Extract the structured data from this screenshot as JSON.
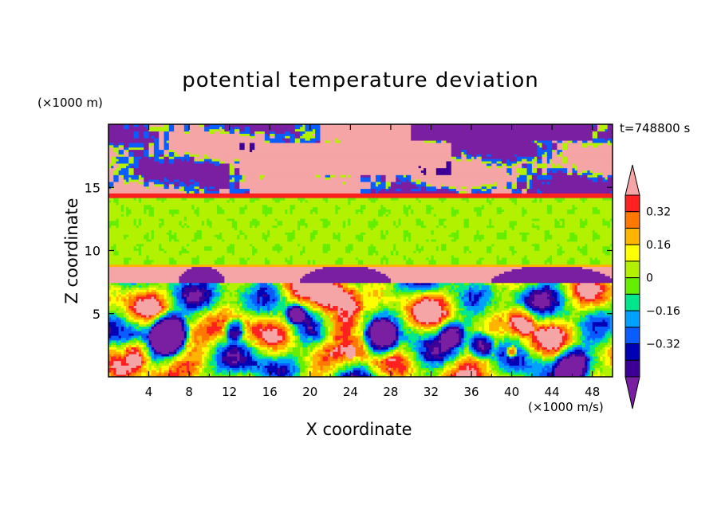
{
  "chart_data": {
    "type": "heatmap",
    "title": "potential temperature deviation",
    "xlabel": "X coordinate",
    "ylabel": "Z coordinate",
    "x_unit": "(×1000 m/s)",
    "y_unit": "(×1000 m)",
    "time_label": "t=748800 s",
    "xlim": [
      0,
      50
    ],
    "ylim": [
      0,
      20
    ],
    "x_ticks": [
      "4",
      "8",
      "12",
      "16",
      "20",
      "24",
      "28",
      "32",
      "36",
      "40",
      "44",
      "48"
    ],
    "y_ticks": [
      "5",
      "10",
      "15"
    ],
    "colorbar": {
      "levels": [
        -0.48,
        -0.4,
        -0.32,
        -0.24,
        -0.16,
        -0.08,
        0,
        0.08,
        0.16,
        0.24,
        0.32,
        0.4
      ],
      "tick_labels": [
        "0.32",
        "0.16",
        "0",
        "−0.16",
        "−0.32"
      ],
      "tick_values": [
        0.32,
        0.16,
        0,
        -0.16,
        -0.32
      ],
      "colors": [
        "#7a1fa2",
        "#3d0096",
        "#0000b4",
        "#0a5cff",
        "#00a0ff",
        "#00e68c",
        "#66ee00",
        "#b2f200",
        "#ffff00",
        "#ffb400",
        "#ff7800",
        "#ff2020",
        "#f5a5a5"
      ]
    },
    "bands": [
      {
        "z_range": [
          0,
          7.5
        ],
        "pattern": "turbulent mixed layer, -0.48 to 0.40"
      },
      {
        "z_range": [
          7.5,
          8.8
        ],
        "value": 0.4
      },
      {
        "z_range": [
          8.8,
          14.5
        ],
        "value": 0.02
      },
      {
        "z_range": [
          14.5,
          20
        ],
        "pattern": "alternating ±0.48"
      }
    ]
  }
}
